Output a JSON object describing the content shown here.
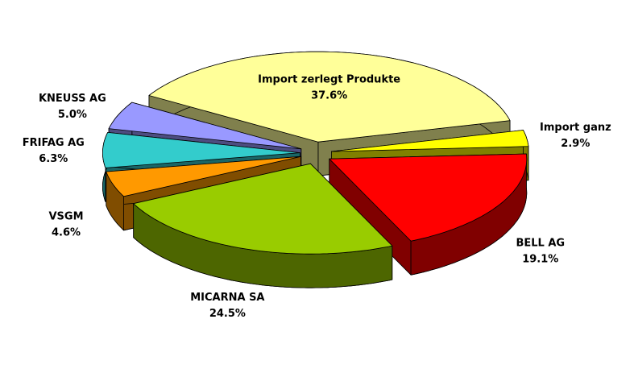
{
  "chart_data": {
    "type": "pie",
    "categories": [
      "Import zerlegt Produkte",
      "Import ganz",
      "BELL AG",
      "MICARNA SA",
      "VSGM",
      "FRIFAG AG",
      "KNEUSS AG"
    ],
    "values": [
      37.6,
      2.9,
      19.1,
      24.5,
      4.6,
      6.3,
      5.0
    ],
    "value_labels": [
      "37.6%",
      "2.9%",
      "19.1%",
      "24.5%",
      "4.6%",
      "6.3%",
      "5.0%"
    ],
    "colors": [
      "#ffff99",
      "#ffff00",
      "#ff0000",
      "#99cc00",
      "#ff9900",
      "#33cccc",
      "#9999ff"
    ],
    "three_d": true,
    "exploded": true
  }
}
